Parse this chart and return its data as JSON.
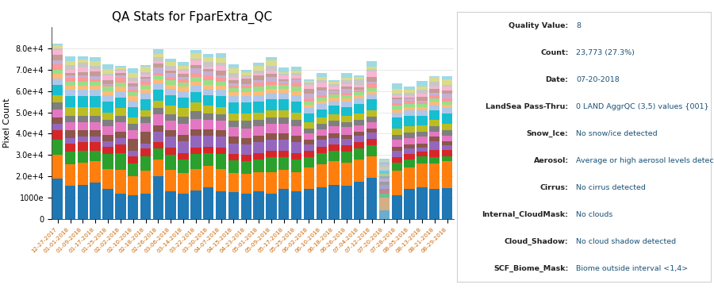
{
  "title": "QA Stats for FparExtra_QC",
  "ylabel": "Pixel Count",
  "dates": [
    "12-27-2017",
    "01-01-2018",
    "01-09-2018",
    "01-17-2018",
    "01-25-2018",
    "02-02-2018",
    "02-10-2018",
    "02-18-2018",
    "02-26-2018",
    "03-06-2018",
    "03-14-2018",
    "03-22-2018",
    "03-30-2018",
    "04-07-2018",
    "04-15-2018",
    "04-23-2018",
    "05-01-2018",
    "05-09-2018",
    "05-17-2018",
    "05-25-2018",
    "06-02-2018",
    "06-10-2018",
    "06-18-2018",
    "06-26-2018",
    "07-04-2018",
    "07-12-2018",
    "07-20-2018",
    "07-28-2018",
    "08-05-2018",
    "08-13-2018",
    "08-21-2018",
    "08-29-2018"
  ],
  "tooltip_lines": [
    [
      "Quality Value:",
      "8"
    ],
    [
      "Count:",
      "23,773 (27.3%)"
    ],
    [
      "Date:",
      "07-20-2018"
    ],
    [
      "LandSea Pass-Thru:",
      "0 LAND AggrQC (3,5) values {001}"
    ],
    [
      "Snow_Ice:",
      "No snow/ice detected"
    ],
    [
      "Aerosol:",
      "Average or high aerosol levels detected"
    ],
    [
      "Cirrus:",
      "No cirrus detected"
    ],
    [
      "Internal_CloudMask:",
      "No clouds"
    ],
    [
      "Cloud_Shadow:",
      "No cloud shadow detected"
    ],
    [
      "SCF_Biome_Mask:",
      "Biome outside interval <1,4>"
    ]
  ],
  "layer_colors": [
    "#1f77b4",
    "#ff7f0e",
    "#2ca02c",
    "#d62728",
    "#9467bd",
    "#8c564b",
    "#e377c2",
    "#7f7f7f",
    "#bcbd22",
    "#17becf",
    "#aec7e8",
    "#ffbb78",
    "#98df8a",
    "#ff9896",
    "#c5b0d5",
    "#c49c94",
    "#f7b6d2",
    "#c7c7c7",
    "#dbdb8d",
    "#9edae5"
  ],
  "highlight_bar_index": 26,
  "highlight_color": "#add8e6"
}
